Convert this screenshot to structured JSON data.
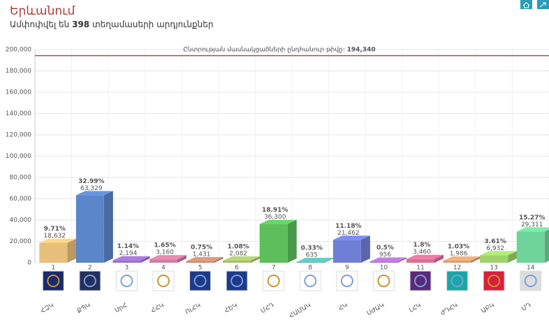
{
  "chart_data": {
    "type": "bar3d",
    "title": "Երևանում",
    "subtitle_start": "Ամփոփվել են",
    "subtitle_number": "398",
    "subtitle_end": "տեղամասերի արդյունքներ",
    "reference": {
      "label": "Ընտրության մասնակցածների ընդհանուր թիվը:",
      "value": 194340,
      "value_label": "194,340",
      "color": "#b24a4a"
    },
    "numbers": [
      "1",
      "2",
      "3",
      "4",
      "5",
      "6",
      "7",
      "8",
      "9",
      "10",
      "11",
      "12",
      "13",
      "14"
    ],
    "categories": [
      "ՀԶԿ",
      "ՔՊԿ",
      "ՍրՀ",
      "ՀՀԿ",
      "ՈւՀԿ",
      "ՀԵԿ",
      "ՄՀԴ",
      "ՀԱՄԱԿ",
      "ՀԿ",
      "ՍԺԱԿ",
      "ԼՀԿ",
      "ԺԴՀԿ",
      "ԱԲԿ",
      "ՄԴ"
    ],
    "values": [
      18632,
      63329,
      2194,
      3160,
      1431,
      2082,
      36300,
      635,
      21462,
      956,
      3460,
      1986,
      6932,
      29311
    ],
    "value_labels": [
      "18,632",
      "63,329",
      "2,194",
      "3,160",
      "1,431",
      "2,082",
      "36,300",
      "635",
      "21,462",
      "956",
      "3,460",
      "1,986",
      "6,932",
      "29,311"
    ],
    "percents": [
      9.71,
      32.99,
      1.14,
      1.65,
      0.75,
      1.08,
      18.91,
      0.33,
      11.18,
      0.5,
      1.8,
      1.03,
      3.61,
      15.27
    ],
    "percent_labels": [
      "9.71%",
      "32.99%",
      "1.14%",
      "1.65%",
      "0.75%",
      "1.08%",
      "18.91%",
      "0.33%",
      "11.18%",
      "0.5%",
      "1.8%",
      "1.03%",
      "3.61%",
      "15.27%"
    ],
    "colors": [
      "#e6c07a",
      "#5b86c9",
      "#9b6fc9",
      "#d07ca0",
      "#c98a6f",
      "#a7c06b",
      "#5cbf5c",
      "#5bb8b0",
      "#6f7fd6",
      "#b070c9",
      "#d96f97",
      "#d9a070",
      "#9ed46a",
      "#6fd49a"
    ],
    "ylim": [
      0,
      200000
    ],
    "yticks": [
      0,
      {
        "value": 20000,
        "label": "20,000"
      },
      {
        "value": 40000,
        "label": "40,000"
      },
      {
        "value": 60000,
        "label": "60,000"
      },
      {
        "value": 80000,
        "label": "80,000"
      },
      {
        "value": 100000,
        "label": "100,000"
      },
      {
        "value": 120000,
        "label": "120,000"
      },
      {
        "value": 140000,
        "label": "140,000"
      },
      {
        "value": 160000,
        "label": "160,000"
      },
      {
        "value": 180000,
        "label": "180,000"
      },
      {
        "value": 200000,
        "label": "200,000"
      }
    ],
    "grid": true
  }
}
